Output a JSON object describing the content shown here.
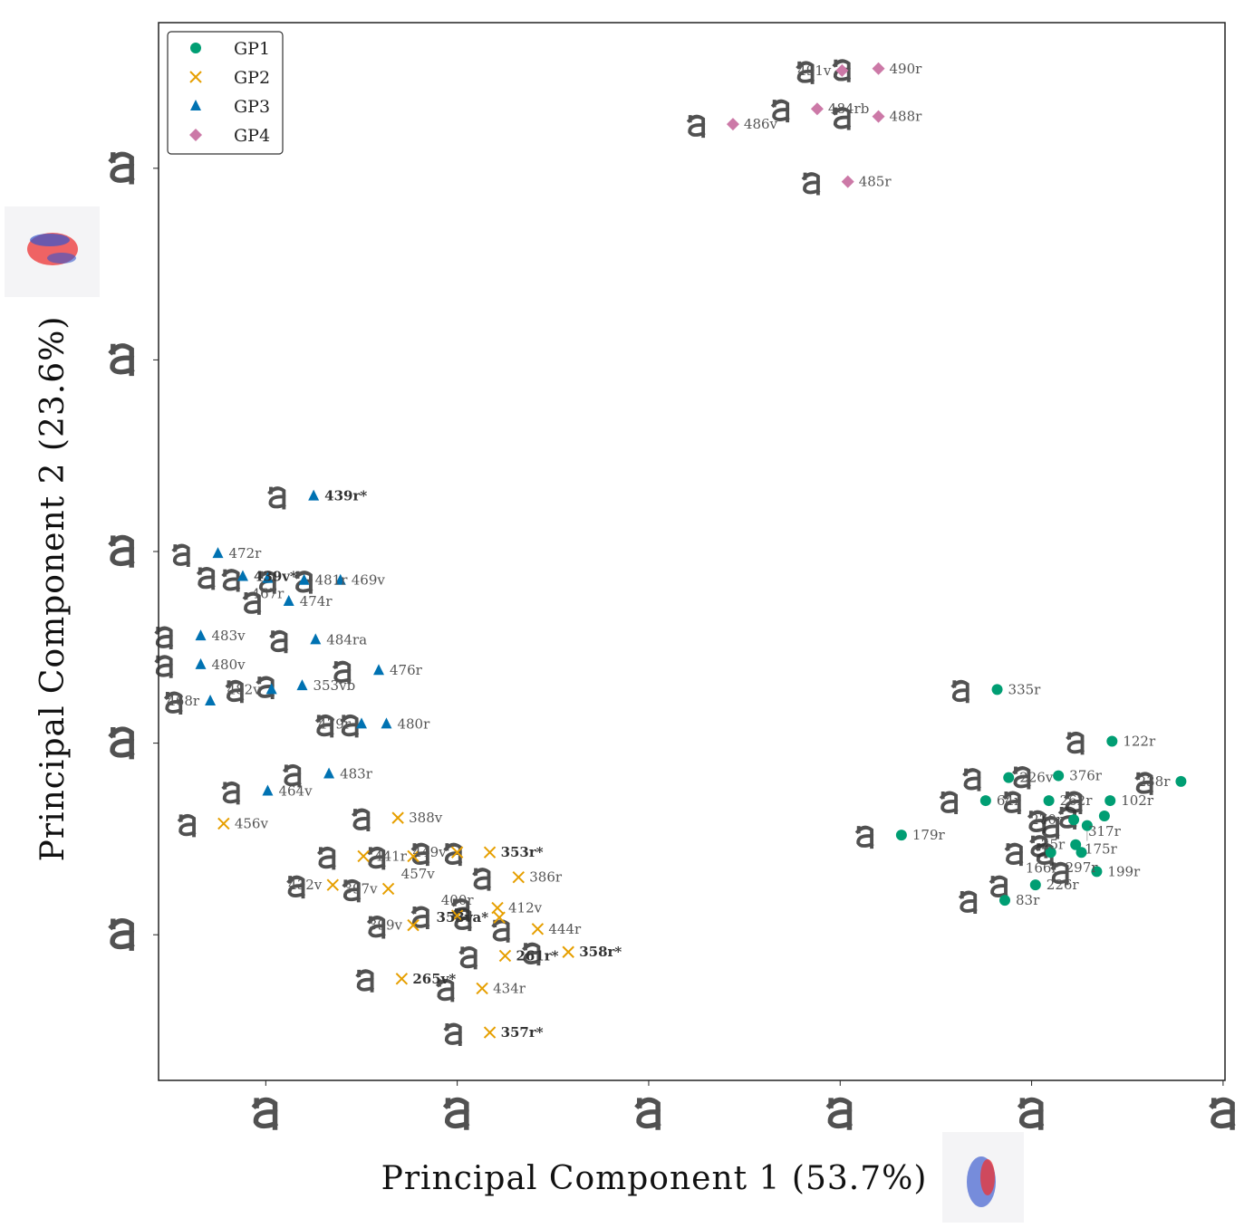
{
  "chart_data": {
    "type": "scatter",
    "title": "",
    "xlabel": "Principal Component 1 (53.7%)",
    "ylabel": "Principal Component 2 (23.6%)",
    "xlim": [
      -2.56,
      3.01
    ],
    "ylim": [
      -2.76,
      2.76
    ],
    "x_ticks": [
      -2,
      -1,
      0,
      1,
      2,
      3
    ],
    "y_ticks": [
      2,
      1,
      0,
      -1,
      -2
    ],
    "tick_glyph": "a",
    "grid": false,
    "legend_position": "top-left",
    "series": [
      {
        "name": "GP1",
        "color": "#009E73",
        "marker": "circle",
        "points": [
          {
            "x": 1.82,
            "y": -0.72,
            "label": "335r"
          },
          {
            "x": 2.42,
            "y": -0.99,
            "label": "122r"
          },
          {
            "x": 2.78,
            "y": -1.2,
            "label": "238r"
          },
          {
            "x": 2.14,
            "y": -1.17,
            "label": "376r"
          },
          {
            "x": 1.88,
            "y": -1.18,
            "label": "226v"
          },
          {
            "x": 2.41,
            "y": -1.3,
            "label": "102r"
          },
          {
            "x": 1.76,
            "y": -1.3,
            "label": "64r"
          },
          {
            "x": 2.09,
            "y": -1.3,
            "label": "262r"
          },
          {
            "x": 2.38,
            "y": -1.38,
            "label": "317r"
          },
          {
            "x": 1.32,
            "y": -1.48,
            "label": "179r"
          },
          {
            "x": 2.22,
            "y": -1.4,
            "label": "270r"
          },
          {
            "x": 2.29,
            "y": -1.43,
            "label": "175r"
          },
          {
            "x": 2.23,
            "y": -1.53,
            "label": "25r"
          },
          {
            "x": 2.26,
            "y": -1.57,
            "label": "297r"
          },
          {
            "x": 2.1,
            "y": -1.57,
            "label": "166r"
          },
          {
            "x": 2.34,
            "y": -1.67,
            "label": "199r"
          },
          {
            "x": 2.02,
            "y": -1.74,
            "label": "226r"
          },
          {
            "x": 1.86,
            "y": -1.82,
            "label": "83r"
          }
        ]
      },
      {
        "name": "GP2",
        "color": "#E69F00",
        "marker": "x",
        "points": [
          {
            "x": -2.22,
            "y": -1.42,
            "label": "456v"
          },
          {
            "x": -1.31,
            "y": -1.39,
            "label": "388v"
          },
          {
            "x": -0.83,
            "y": -1.57,
            "label": "353r*",
            "bold": true
          },
          {
            "x": -1.0,
            "y": -1.57,
            "label": "449v"
          },
          {
            "x": -1.49,
            "y": -1.59,
            "label": "441r"
          },
          {
            "x": -1.23,
            "y": -1.59,
            "label": "457v"
          },
          {
            "x": -0.68,
            "y": -1.7,
            "label": "386r"
          },
          {
            "x": -1.36,
            "y": -1.76,
            "label": "397v"
          },
          {
            "x": -1.65,
            "y": -1.74,
            "label": "432v"
          },
          {
            "x": -0.79,
            "y": -1.86,
            "label": "412v"
          },
          {
            "x": -0.78,
            "y": -1.91,
            "label": "353va*",
            "bold": true
          },
          {
            "x": -0.58,
            "y": -1.97,
            "label": "444r"
          },
          {
            "x": -1.23,
            "y": -1.95,
            "label": "399v"
          },
          {
            "x": -1.0,
            "y": -1.9,
            "label": "400r"
          },
          {
            "x": -0.75,
            "y": -2.11,
            "label": "261r*",
            "bold": true
          },
          {
            "x": -0.42,
            "y": -2.09,
            "label": "358r*",
            "bold": true
          },
          {
            "x": -1.29,
            "y": -2.23,
            "label": "265v*",
            "bold": true
          },
          {
            "x": -0.87,
            "y": -2.28,
            "label": "434r"
          },
          {
            "x": -0.83,
            "y": -2.51,
            "label": "357r*",
            "bold": true
          }
        ]
      },
      {
        "name": "GP3",
        "color": "#0072B2",
        "marker": "triangle",
        "points": [
          {
            "x": -1.75,
            "y": 0.29,
            "label": "439r*",
            "bold": true
          },
          {
            "x": -2.25,
            "y": -0.01,
            "label": "472r"
          },
          {
            "x": -2.12,
            "y": -0.13,
            "label": "439v*",
            "bold": true
          },
          {
            "x": -1.99,
            "y": -0.14,
            "label": "467r"
          },
          {
            "x": -1.61,
            "y": -0.15,
            "label": "469v"
          },
          {
            "x": -1.8,
            "y": -0.15,
            "label": "481r"
          },
          {
            "x": -1.88,
            "y": -0.26,
            "label": "474r"
          },
          {
            "x": -2.34,
            "y": -0.44,
            "label": "483v"
          },
          {
            "x": -1.74,
            "y": -0.46,
            "label": "484ra"
          },
          {
            "x": -2.34,
            "y": -0.59,
            "label": "480v"
          },
          {
            "x": -1.41,
            "y": -0.62,
            "label": "476r"
          },
          {
            "x": -1.81,
            "y": -0.7,
            "label": "353vb"
          },
          {
            "x": -1.97,
            "y": -0.72,
            "label": "482v"
          },
          {
            "x": -2.29,
            "y": -0.78,
            "label": "468r"
          },
          {
            "x": -1.37,
            "y": -0.9,
            "label": "480r"
          },
          {
            "x": -1.5,
            "y": -0.9,
            "label": "479r"
          },
          {
            "x": -1.67,
            "y": -1.16,
            "label": "483r"
          },
          {
            "x": -1.99,
            "y": -1.25,
            "label": "464v"
          }
        ]
      },
      {
        "name": "GP4",
        "color": "#CC79A7",
        "marker": "diamond",
        "points": [
          {
            "x": 1.2,
            "y": 2.52,
            "label": "490r"
          },
          {
            "x": 1.01,
            "y": 2.51,
            "label": "491v"
          },
          {
            "x": 0.88,
            "y": 2.31,
            "label": "484rb"
          },
          {
            "x": 1.2,
            "y": 2.27,
            "label": "488r"
          },
          {
            "x": 0.44,
            "y": 2.23,
            "label": "486v"
          },
          {
            "x": 1.04,
            "y": 1.93,
            "label": "485r"
          }
        ]
      }
    ]
  }
}
